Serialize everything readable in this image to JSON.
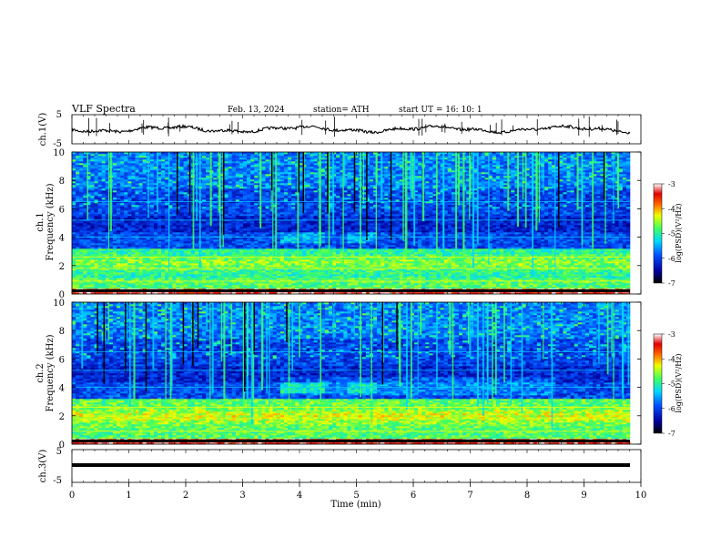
{
  "header": {
    "title": "VLF  Spectra",
    "date": "Feb. 13, 2024",
    "station": "station= ATH",
    "start": "start  UT  =    16: 10: 1"
  },
  "chart_data": [
    {
      "type": "line",
      "name": "ch1-waveform",
      "ylabel": "ch.1(V)",
      "ytick_labels": [
        "5",
        "-5"
      ],
      "ylim": [
        -5,
        5
      ],
      "xlim": [
        0,
        10
      ]
    },
    {
      "type": "heatmap",
      "name": "ch1-spectrogram",
      "ylabel": "ch.1",
      "ylabel2": "Frequency  (kHz)",
      "ytick_labels": [
        "0",
        "2",
        "4",
        "6",
        "8",
        "10"
      ],
      "ylim": [
        0,
        10
      ],
      "xlim": [
        0,
        10
      ],
      "colorbar": {
        "ticks": [
          "-3",
          "-4",
          "-5",
          "-6",
          "-7"
        ],
        "label": "log(PSD)(V²/Hz)",
        "range": [
          -7,
          -3
        ]
      }
    },
    {
      "type": "heatmap",
      "name": "ch2-spectrogram",
      "ylabel": "ch.2",
      "ylabel2": "Frequency  (kHz)",
      "ytick_labels": [
        "0",
        "2",
        "4",
        "6",
        "8",
        "10"
      ],
      "ylim": [
        0,
        10
      ],
      "xlim": [
        0,
        10
      ],
      "colorbar": {
        "ticks": [
          "-3",
          "-4",
          "-5",
          "-6",
          "-7"
        ],
        "label": "log(PSD)(V²/Hz)",
        "range": [
          -7,
          -3
        ]
      }
    },
    {
      "type": "line",
      "name": "ch3-waveform",
      "ylabel": "ch.3(V)",
      "ytick_labels": [
        "5",
        "-5"
      ],
      "ylim": [
        -5,
        5
      ],
      "xlim": [
        0,
        10
      ]
    }
  ],
  "xaxis": {
    "label": "Time  (min)",
    "ticks": [
      "0",
      "1",
      "2",
      "3",
      "4",
      "5",
      "6",
      "7",
      "8",
      "9",
      "10"
    ]
  }
}
